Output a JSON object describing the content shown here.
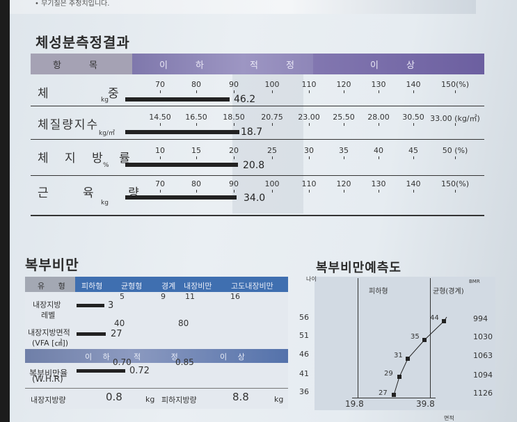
{
  "note": "• 무기질은 추정치입니다.",
  "body_comp": {
    "title": "체성분측정결과",
    "headers": {
      "item": "항 목",
      "low": "이 하",
      "normal": "적 정",
      "high": "이 상"
    },
    "rows": [
      {
        "label": "체 중",
        "unit": "kg",
        "ticks": [
          "70",
          "80",
          "90",
          "100",
          "110",
          "120",
          "130",
          "140",
          "150(%)"
        ],
        "value": "46.2"
      },
      {
        "label": "체질량지수",
        "unit": "kg/㎡",
        "ticks": [
          "14.50",
          "16.50",
          "18.50",
          "20.75",
          "23.00",
          "25.50",
          "28.00",
          "30.50",
          "33.00 (kg/㎡)"
        ],
        "value": "18.7"
      },
      {
        "label": "체 지 방 률",
        "unit": "%",
        "ticks": [
          "10",
          "15",
          "20",
          "25",
          "30",
          "35",
          "40",
          "45",
          "50  (%)"
        ],
        "value": "20.8"
      },
      {
        "label": "근 육 량",
        "unit": "kg",
        "ticks": [
          "70",
          "80",
          "90",
          "100",
          "110",
          "120",
          "130",
          "140",
          "150(%)"
        ],
        "value": "34.0"
      }
    ]
  },
  "abdominal": {
    "title": "복부비만",
    "header": {
      "type": "유 형",
      "c1": "피하형",
      "c2": "균형형",
      "c3": "경계",
      "c4": "내장비만",
      "c5": "고도내장비만"
    },
    "level": {
      "label1": "내장지방",
      "label2": "레벨",
      "ticks": [
        "5",
        "9",
        "11",
        "16"
      ],
      "value": "3"
    },
    "vfa": {
      "label1": "내장지방면적",
      "label2": "(VFA [㎠])",
      "ticks": [
        "40",
        "80"
      ],
      "value": "27"
    },
    "band": {
      "low": "이 하",
      "normal": "적 정",
      "high": "이 상"
    },
    "whr": {
      "label1": "복부비만율",
      "label2": "(W.H.R)",
      "ticks": [
        "0.70",
        "0.85"
      ],
      "value": "0.72"
    },
    "visceral": {
      "label": "내장지방량",
      "value": "0.8",
      "unit": "kg"
    },
    "subcut": {
      "label": "피하지방량",
      "value": "8.8",
      "unit": "kg"
    }
  },
  "prediction": {
    "title": "복부비만예측도",
    "age_label": "나이",
    "bmr_label": "BMR",
    "left_zone": "피하형",
    "right_zone": "균형(경계)",
    "ages": [
      "56",
      "51",
      "46",
      "41",
      "36"
    ],
    "bmr": [
      "994",
      "1030",
      "1063",
      "1094",
      "1126"
    ],
    "points": [
      {
        "age": 44,
        "val": "44"
      },
      {
        "age": 35,
        "val": "35"
      },
      {
        "age": 31,
        "val": "31"
      },
      {
        "age": 29,
        "val": "29"
      },
      {
        "age": 27,
        "val": "27"
      }
    ],
    "x_left": "19.8",
    "x_right": "39.8",
    "x_label": "면적"
  }
}
